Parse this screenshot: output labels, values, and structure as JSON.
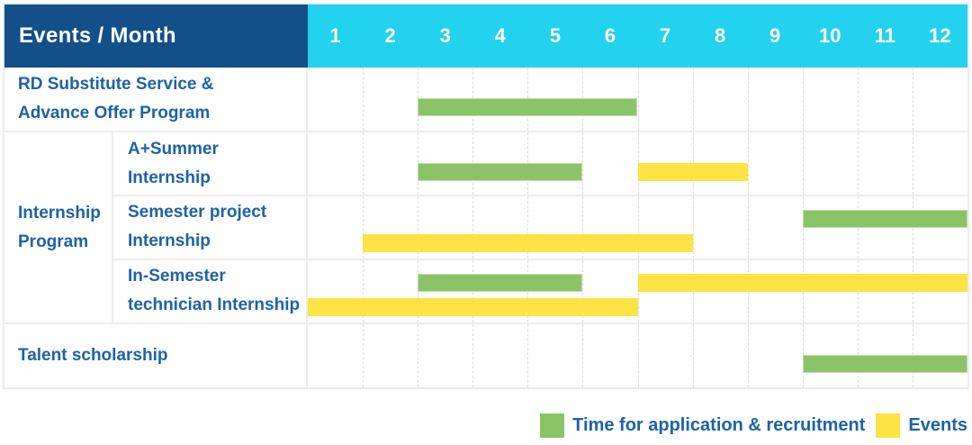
{
  "colors": {
    "header_navy": "#134f88",
    "header_cyan": "#23d2ee",
    "label_blue": "#1d62a8",
    "bar_green": "#8bc468",
    "bar_yellow": "#fde343",
    "grid_border": "#ededed",
    "month_gridline": "#dcdcdc"
  },
  "header": {
    "title": "Events / Month",
    "months": [
      "1",
      "2",
      "3",
      "4",
      "5",
      "6",
      "7",
      "8",
      "9",
      "10",
      "11",
      "12"
    ]
  },
  "chart_data": {
    "type": "gantt",
    "title": "Events / Month",
    "x_axis_label": "Month",
    "x_ticks": [
      1,
      2,
      3,
      4,
      5,
      6,
      7,
      8,
      9,
      10,
      11,
      12
    ],
    "x_range": [
      1,
      12
    ],
    "grid": "dashed-monthly",
    "legend_position": "bottom-right",
    "series_legend": [
      {
        "name": "Time for application & recruitment",
        "key": "application",
        "color": "#8bc468"
      },
      {
        "name": "Events",
        "key": "event",
        "color": "#fde343"
      }
    ],
    "rows": [
      {
        "label": "RD Substitute Service & Advance Offer Program",
        "group": "",
        "bars": [
          {
            "series": "application",
            "start_month": 3,
            "end_month": 6,
            "lane": "single"
          }
        ]
      },
      {
        "label": "A+Summer Internship",
        "group": "Internship Program",
        "bars": [
          {
            "series": "application",
            "start_month": 3,
            "end_month": 5,
            "lane": "single"
          },
          {
            "series": "event",
            "start_month": 7,
            "end_month": 8,
            "lane": "single"
          }
        ]
      },
      {
        "label": "Semester project Internship",
        "group": "Internship Program",
        "bars": [
          {
            "series": "application",
            "start_month": 10,
            "end_month": 12,
            "lane": "top"
          },
          {
            "series": "event",
            "start_month": 2,
            "end_month": 7,
            "lane": "bottom"
          }
        ]
      },
      {
        "label": "In-Semester technician Internship",
        "group": "Internship Program",
        "bars": [
          {
            "series": "application",
            "start_month": 3,
            "end_month": 5,
            "lane": "top"
          },
          {
            "series": "event",
            "start_month": 7,
            "end_month": 12,
            "lane": "top"
          },
          {
            "series": "event",
            "start_month": 1,
            "end_month": 6,
            "lane": "bottom"
          }
        ]
      },
      {
        "label": "Talent scholarship",
        "group": "",
        "bars": [
          {
            "series": "application",
            "start_month": 10,
            "end_month": 12,
            "lane": "single"
          }
        ]
      }
    ]
  }
}
